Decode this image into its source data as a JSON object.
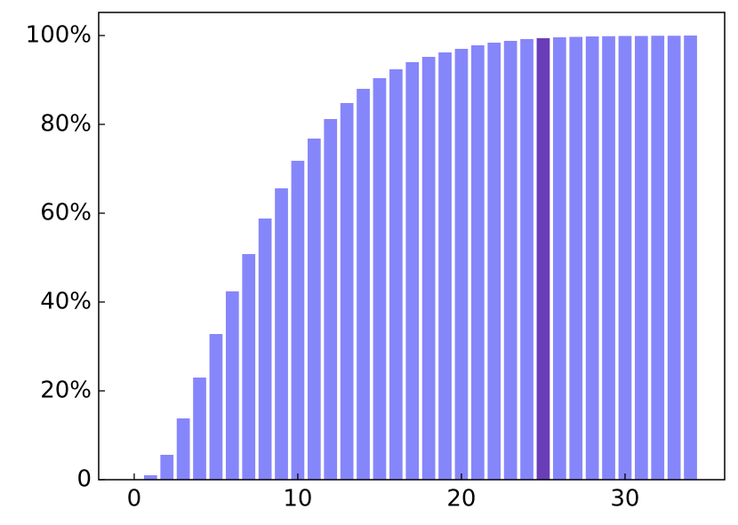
{
  "chart_data": {
    "type": "bar",
    "x": [
      0,
      1,
      2,
      3,
      4,
      5,
      6,
      7,
      8,
      9,
      10,
      11,
      12,
      13,
      14,
      15,
      16,
      17,
      18,
      19,
      20,
      21,
      22,
      23,
      24,
      25,
      26,
      27,
      28,
      29,
      30,
      31,
      32,
      33,
      34
    ],
    "values": [
      0,
      1,
      5.6,
      13.8,
      23,
      32.8,
      42.4,
      50.8,
      58.8,
      65.6,
      71.8,
      76.8,
      81.2,
      84.8,
      88,
      90.4,
      92.4,
      94,
      95.2,
      96.2,
      97,
      97.8,
      98.4,
      98.8,
      99.2,
      99.4,
      99.6,
      99.7,
      99.8,
      99.85,
      99.9,
      99.9,
      99.95,
      99.95,
      100
    ],
    "color": "#8686fb",
    "highlight": {
      "x": 25,
      "color": "#6a3db8"
    },
    "xlim": [
      -2.17,
      36.09
    ],
    "ylim": [
      0,
      105.2
    ],
    "xticks": [
      0,
      10,
      20,
      30
    ],
    "yticks": [
      0,
      {
        "value": 20,
        "label": "20%"
      },
      {
        "value": 40,
        "label": "40%"
      },
      {
        "value": 60,
        "label": "60%"
      },
      {
        "value": 80,
        "label": "80%"
      },
      {
        "value": 100,
        "label": "100%"
      }
    ]
  }
}
